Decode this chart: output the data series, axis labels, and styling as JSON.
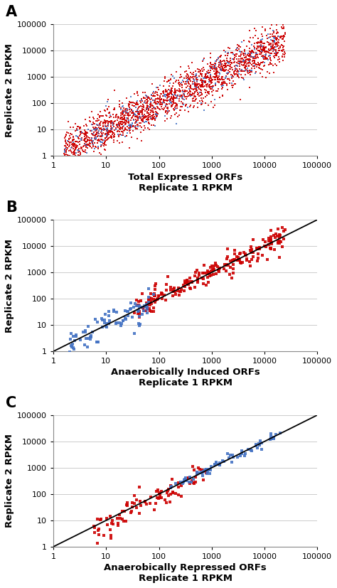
{
  "panel_A": {
    "label": "A",
    "xlabel_line1": "Total Expressed ORFs",
    "xlabel_line2": "Replicate 1 RPKM",
    "ylabel": "Replicate 2 RPKM",
    "xlim": [
      1,
      100000
    ],
    "ylim": [
      1,
      100000
    ],
    "has_diagonal": false,
    "n_red": 2000,
    "n_blue": 280,
    "red_x_log_min": 0.2,
    "red_x_log_max": 4.4,
    "blue_x_log_min": 0.2,
    "blue_x_log_max": 4.3,
    "red_noise": 0.35,
    "blue_noise": 0.32,
    "red_color": "#CC0000",
    "blue_color": "#4472C4",
    "red_marker_size": 3.5,
    "blue_marker_size": 4.5
  },
  "panel_B": {
    "label": "B",
    "xlabel_line1": "Anaerobically Induced ORFs",
    "xlabel_line2": "Replicate 1 RPKM",
    "ylabel": "Replicate 2 RPKM",
    "xlim": [
      1,
      100000
    ],
    "ylim": [
      1,
      100000
    ],
    "has_diagonal": true,
    "n_red": 230,
    "n_blue": 90,
    "red_x_log_min": 1.5,
    "red_x_log_max": 4.4,
    "blue_x_log_min": 0.3,
    "blue_x_log_max": 1.9,
    "red_noise": 0.22,
    "blue_noise": 0.22,
    "red_color": "#CC0000",
    "blue_color": "#4472C4",
    "red_marker_size": 5,
    "blue_marker_size": 5
  },
  "panel_C": {
    "label": "C",
    "xlabel_line1": "Anaerobically Repressed ORFs",
    "xlabel_line2": "Replicate 1 RPKM",
    "ylabel": "Replicate 2 RPKM",
    "xlim": [
      1,
      100000
    ],
    "ylim": [
      1,
      100000
    ],
    "has_diagonal": true,
    "n_red": 95,
    "n_blue": 75,
    "red_x_log_min": 0.7,
    "red_x_log_max": 2.9,
    "blue_x_log_min": 2.2,
    "blue_x_log_max": 4.3,
    "red_noise": 0.22,
    "blue_noise": 0.12,
    "red_color": "#CC0000",
    "blue_color": "#4472C4",
    "red_marker_size": 6,
    "blue_marker_size": 6
  },
  "background_color": "#FFFFFF",
  "grid_color": "#CCCCCC",
  "label_fontsize": 9.5,
  "tick_fontsize": 8
}
